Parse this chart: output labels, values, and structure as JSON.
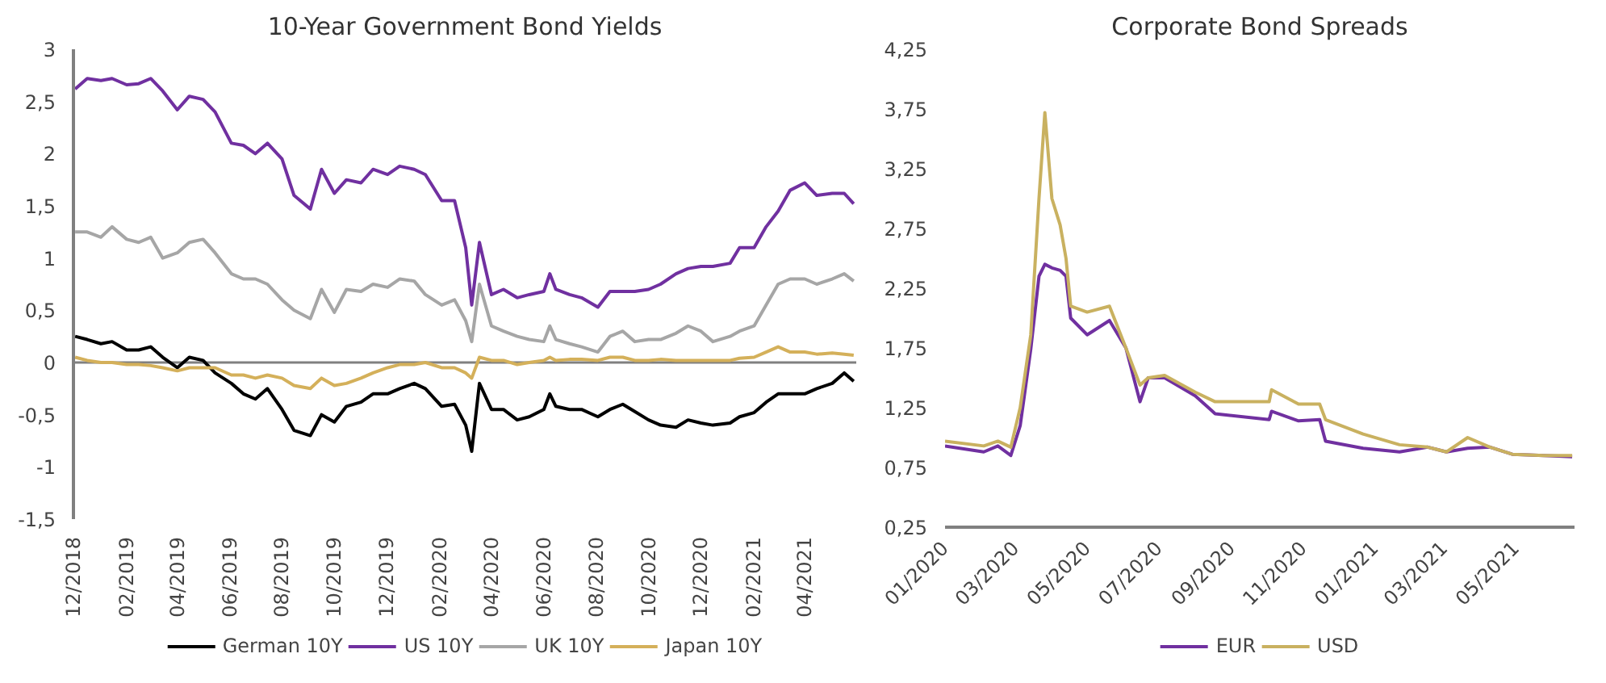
{
  "chart_data": [
    {
      "type": "line",
      "title": "10-Year Government Bond Yields",
      "x": [
        "2018-12-03",
        "2018-12-17",
        "2019-01-02",
        "2019-01-15",
        "2019-02-01",
        "2019-02-15",
        "2019-03-01",
        "2019-03-15",
        "2019-04-01",
        "2019-04-15",
        "2019-05-01",
        "2019-05-15",
        "2019-06-03",
        "2019-06-17",
        "2019-07-01",
        "2019-07-15",
        "2019-08-01",
        "2019-08-15",
        "2019-09-03",
        "2019-09-16",
        "2019-10-01",
        "2019-10-15",
        "2019-11-01",
        "2019-11-15",
        "2019-12-02",
        "2019-12-16",
        "2020-01-02",
        "2020-01-15",
        "2020-02-03",
        "2020-02-18",
        "2020-03-02",
        "2020-03-09",
        "2020-03-18",
        "2020-04-01",
        "2020-04-15",
        "2020-05-01",
        "2020-05-15",
        "2020-06-01",
        "2020-06-08",
        "2020-06-15",
        "2020-07-01",
        "2020-07-15",
        "2020-08-03",
        "2020-08-17",
        "2020-09-01",
        "2020-09-15",
        "2020-10-01",
        "2020-10-15",
        "2020-11-02",
        "2020-11-16",
        "2020-12-01",
        "2020-12-15",
        "2021-01-04",
        "2021-01-15",
        "2021-02-01",
        "2021-02-15",
        "2021-03-01",
        "2021-03-15",
        "2021-04-01",
        "2021-04-15",
        "2021-05-03",
        "2021-05-17",
        "2021-05-28"
      ],
      "series": [
        {
          "name": "German 10Y",
          "color": "#000000",
          "values": [
            0.25,
            0.22,
            0.18,
            0.2,
            0.12,
            0.12,
            0.15,
            0.05,
            -0.05,
            0.05,
            0.02,
            -0.1,
            -0.2,
            -0.3,
            -0.35,
            -0.25,
            -0.45,
            -0.65,
            -0.7,
            -0.5,
            -0.57,
            -0.42,
            -0.38,
            -0.3,
            -0.3,
            -0.25,
            -0.2,
            -0.25,
            -0.42,
            -0.4,
            -0.6,
            -0.85,
            -0.2,
            -0.45,
            -0.45,
            -0.55,
            -0.52,
            -0.45,
            -0.3,
            -0.42,
            -0.45,
            -0.45,
            -0.52,
            -0.45,
            -0.4,
            -0.47,
            -0.55,
            -0.6,
            -0.62,
            -0.55,
            -0.58,
            -0.6,
            -0.58,
            -0.52,
            -0.48,
            -0.38,
            -0.3,
            -0.3,
            -0.3,
            -0.25,
            -0.2,
            -0.1,
            -0.18
          ]
        },
        {
          "name": "US 10Y",
          "color": "#7030a0",
          "values": [
            2.62,
            2.72,
            2.7,
            2.72,
            2.66,
            2.67,
            2.72,
            2.6,
            2.42,
            2.55,
            2.52,
            2.4,
            2.1,
            2.08,
            2.0,
            2.1,
            1.95,
            1.6,
            1.47,
            1.85,
            1.62,
            1.75,
            1.72,
            1.85,
            1.8,
            1.88,
            1.85,
            1.8,
            1.55,
            1.55,
            1.1,
            0.55,
            1.15,
            0.65,
            0.7,
            0.62,
            0.65,
            0.68,
            0.85,
            0.7,
            0.65,
            0.62,
            0.53,
            0.68,
            0.68,
            0.68,
            0.7,
            0.75,
            0.85,
            0.9,
            0.92,
            0.92,
            0.95,
            1.1,
            1.1,
            1.3,
            1.45,
            1.65,
            1.72,
            1.6,
            1.62,
            1.62,
            1.52
          ]
        },
        {
          "name": "UK 10Y",
          "color": "#a6a6a6",
          "values": [
            1.25,
            1.25,
            1.2,
            1.3,
            1.18,
            1.15,
            1.2,
            1.0,
            1.05,
            1.15,
            1.18,
            1.05,
            0.85,
            0.8,
            0.8,
            0.75,
            0.6,
            0.5,
            0.42,
            0.7,
            0.48,
            0.7,
            0.68,
            0.75,
            0.72,
            0.8,
            0.78,
            0.65,
            0.55,
            0.6,
            0.4,
            0.2,
            0.75,
            0.35,
            0.3,
            0.25,
            0.22,
            0.2,
            0.35,
            0.22,
            0.18,
            0.15,
            0.1,
            0.25,
            0.3,
            0.2,
            0.22,
            0.22,
            0.28,
            0.35,
            0.3,
            0.2,
            0.25,
            0.3,
            0.35,
            0.55,
            0.75,
            0.8,
            0.8,
            0.75,
            0.8,
            0.85,
            0.78
          ]
        },
        {
          "name": "Japan 10Y",
          "color": "#d4b05a",
          "values": [
            0.05,
            0.02,
            0.0,
            0.0,
            -0.02,
            -0.02,
            -0.03,
            -0.05,
            -0.08,
            -0.05,
            -0.05,
            -0.05,
            -0.12,
            -0.12,
            -0.15,
            -0.12,
            -0.15,
            -0.22,
            -0.25,
            -0.15,
            -0.22,
            -0.2,
            -0.15,
            -0.1,
            -0.05,
            -0.02,
            -0.02,
            0.0,
            -0.05,
            -0.05,
            -0.1,
            -0.15,
            0.05,
            0.02,
            0.02,
            -0.02,
            0.0,
            0.02,
            0.05,
            0.02,
            0.03,
            0.03,
            0.02,
            0.05,
            0.05,
            0.02,
            0.02,
            0.03,
            0.02,
            0.02,
            0.02,
            0.02,
            0.02,
            0.04,
            0.05,
            0.1,
            0.15,
            0.1,
            0.1,
            0.08,
            0.09,
            0.08,
            0.07
          ]
        }
      ],
      "xlim": [
        "2018-12-01",
        "2021-05-31"
      ],
      "xticks": [
        {
          "value": "2018-12-01",
          "label": "12/2018"
        },
        {
          "value": "2019-02-01",
          "label": "02/2019"
        },
        {
          "value": "2019-04-01",
          "label": "04/2019"
        },
        {
          "value": "2019-06-01",
          "label": "06/2019"
        },
        {
          "value": "2019-08-01",
          "label": "08/2019"
        },
        {
          "value": "2019-10-01",
          "label": "10/2019"
        },
        {
          "value": "2019-12-01",
          "label": "12/2019"
        },
        {
          "value": "2020-02-01",
          "label": "02/2020"
        },
        {
          "value": "2020-04-01",
          "label": "04/2020"
        },
        {
          "value": "2020-06-01",
          "label": "06/2020"
        },
        {
          "value": "2020-08-01",
          "label": "08/2020"
        },
        {
          "value": "2020-10-01",
          "label": "10/2020"
        },
        {
          "value": "2020-12-01",
          "label": "12/2020"
        },
        {
          "value": "2021-02-01",
          "label": "02/2021"
        },
        {
          "value": "2021-04-01",
          "label": "04/2021"
        }
      ],
      "ylim": [
        -1.5,
        3
      ],
      "yticks": [
        {
          "value": -1.5,
          "label": "-1,5"
        },
        {
          "value": -1,
          "label": "-1"
        },
        {
          "value": -0.5,
          "label": "-0,5"
        },
        {
          "value": 0,
          "label": "0"
        },
        {
          "value": 0.5,
          "label": "0,5"
        },
        {
          "value": 1,
          "label": "1"
        },
        {
          "value": 1.5,
          "label": "1,5"
        },
        {
          "value": 2,
          "label": "2"
        },
        {
          "value": 2.5,
          "label": "2,5"
        },
        {
          "value": 3,
          "label": "3"
        }
      ],
      "ref_lines": [
        {
          "axis": "y",
          "value": 0,
          "color": "#808080"
        }
      ],
      "grid": false,
      "legend": "bottom"
    },
    {
      "type": "line",
      "title": "Corporate Bond Spreads",
      "x": [
        "2020-01-01",
        "2020-02-03",
        "2020-02-15",
        "2020-02-26",
        "2020-03-05",
        "2020-03-14",
        "2020-03-21",
        "2020-03-26",
        "2020-04-01",
        "2020-04-08",
        "2020-04-13",
        "2020-04-17",
        "2020-05-01",
        "2020-05-20",
        "2020-06-03",
        "2020-06-15",
        "2020-06-22",
        "2020-07-06",
        "2020-08-01",
        "2020-08-18",
        "2020-10-03",
        "2020-10-05",
        "2020-10-28",
        "2020-11-15",
        "2020-11-20",
        "2020-12-22",
        "2021-01-22",
        "2021-02-15",
        "2021-03-03",
        "2021-03-21",
        "2021-04-09",
        "2021-04-28",
        "2021-05-25",
        "2021-06-18"
      ],
      "series": [
        {
          "name": "EUR",
          "color": "#7030a0",
          "values": [
            0.93,
            0.88,
            0.93,
            0.85,
            1.1,
            1.74,
            2.35,
            2.45,
            2.42,
            2.4,
            2.35,
            2.0,
            1.86,
            1.98,
            1.75,
            1.3,
            1.5,
            1.5,
            1.35,
            1.2,
            1.15,
            1.22,
            1.14,
            1.15,
            0.97,
            0.91,
            0.88,
            0.92,
            0.88,
            0.91,
            0.92,
            0.86,
            0.85,
            0.84
          ]
        },
        {
          "name": "USD",
          "color": "#c9b160",
          "values": [
            0.97,
            0.93,
            0.97,
            0.92,
            1.25,
            1.86,
            3.0,
            3.72,
            3.0,
            2.78,
            2.5,
            2.1,
            2.05,
            2.1,
            1.75,
            1.44,
            1.5,
            1.52,
            1.38,
            1.3,
            1.3,
            1.4,
            1.28,
            1.28,
            1.15,
            1.03,
            0.94,
            0.92,
            0.88,
            1.0,
            0.92,
            0.86,
            0.85,
            0.85
          ]
        }
      ],
      "xlim": [
        "2020-01-01",
        "2021-06-20"
      ],
      "xticks": [
        {
          "value": "2020-01-01",
          "label": "01/2020"
        },
        {
          "value": "2020-03-01",
          "label": "03/2020"
        },
        {
          "value": "2020-05-01",
          "label": "05/2020"
        },
        {
          "value": "2020-07-01",
          "label": "07/2020"
        },
        {
          "value": "2020-09-01",
          "label": "09/2020"
        },
        {
          "value": "2020-11-01",
          "label": "11/2020"
        },
        {
          "value": "2021-01-01",
          "label": "01/2021"
        },
        {
          "value": "2021-03-01",
          "label": "03/2021"
        },
        {
          "value": "2021-05-01",
          "label": "05/2021"
        }
      ],
      "ylim": [
        0.25,
        4.25
      ],
      "yticks": [
        {
          "value": 0.25,
          "label": "0,25"
        },
        {
          "value": 0.75,
          "label": "0,75"
        },
        {
          "value": 1.25,
          "label": "1,25"
        },
        {
          "value": 1.75,
          "label": "1,75"
        },
        {
          "value": 2.25,
          "label": "2,25"
        },
        {
          "value": 2.75,
          "label": "2,75"
        },
        {
          "value": 3.25,
          "label": "3,25"
        },
        {
          "value": 3.75,
          "label": "3,75"
        },
        {
          "value": 4.25,
          "label": "4,25"
        }
      ],
      "grid": false,
      "legend": "bottom"
    }
  ]
}
